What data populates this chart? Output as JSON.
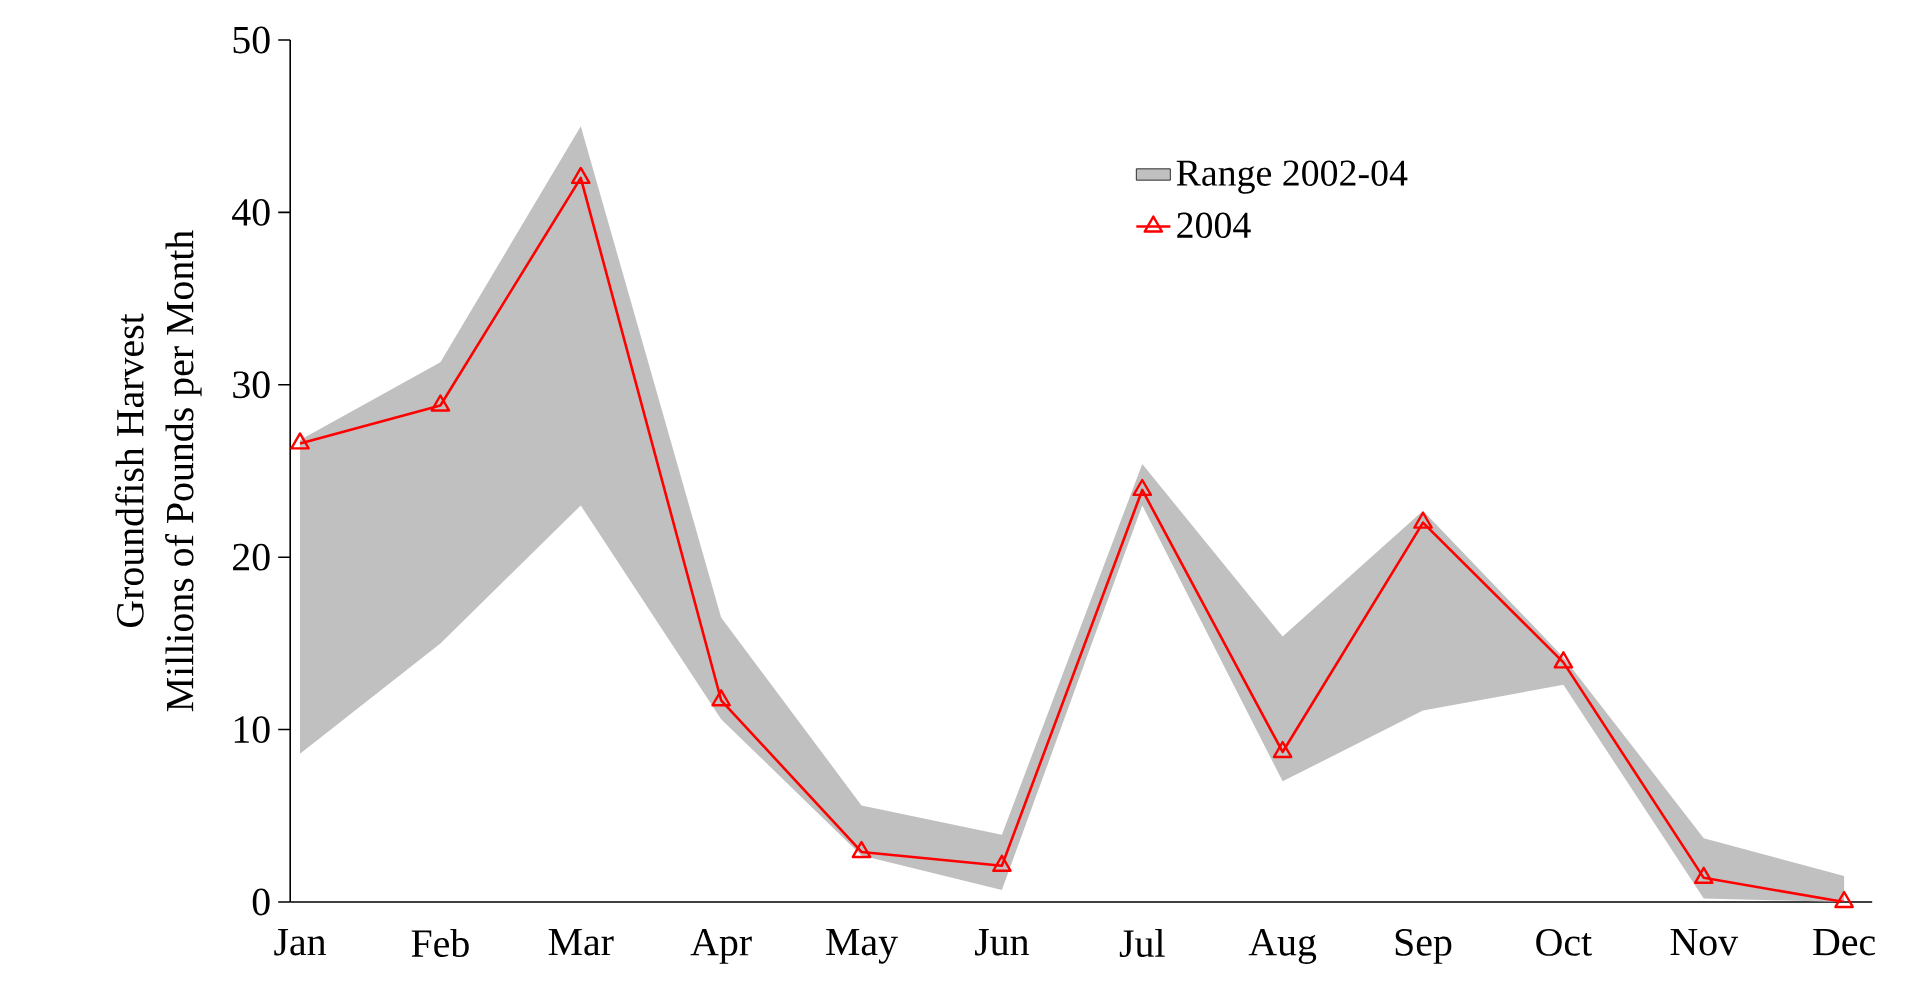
{
  "chart_data": {
    "type": "line",
    "ylabel": "Groundfish Harvest\nMillions of Pounds per Month",
    "categories": [
      "Jan",
      "Feb",
      "Mar",
      "Apr",
      "May",
      "Jun",
      "Jul",
      "Aug",
      "Sep",
      "Oct",
      "Nov",
      "Dec"
    ],
    "series": [
      {
        "name": "Range 2002-04",
        "color": "#c0c0c0",
        "values": [
          null,
          null,
          null,
          null,
          null,
          null,
          null,
          null,
          null,
          null,
          null,
          null
        ],
        "lower": [
          8.6,
          15.0,
          23.0,
          10.6,
          2.7,
          0.7,
          23.0,
          7.0,
          11.1,
          12.6,
          0.2,
          0.0
        ],
        "upper": [
          26.8,
          31.3,
          45.0,
          16.5,
          5.6,
          3.9,
          25.4,
          15.4,
          22.7,
          14.2,
          3.7,
          1.5
        ]
      },
      {
        "name": "2004",
        "color": "#ff0000",
        "marker": "triangle",
        "values": [
          26.6,
          28.8,
          42.0,
          11.7,
          2.9,
          2.1,
          23.9,
          8.7,
          22.0,
          13.9,
          1.4,
          0.0
        ]
      }
    ],
    "ylim": [
      0,
      50
    ],
    "yticks": [
      0,
      10,
      20,
      30,
      40,
      50
    ],
    "grid": false,
    "legend": "top right"
  }
}
